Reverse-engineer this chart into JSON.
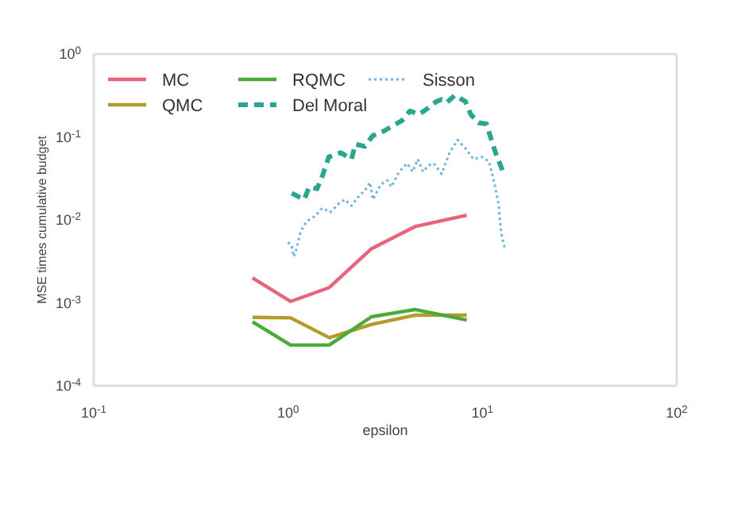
{
  "chart_data": {
    "type": "line",
    "xlabel": "epsilon",
    "ylabel": "MSE times cumulative budget",
    "log": "xy",
    "legend": "top left",
    "xlim": [
      0.1,
      100
    ],
    "xticks": [
      {
        "value": 0.1,
        "label": "10$^{-1}$"
      },
      {
        "value": 1,
        "label": "10$^{0}$"
      },
      {
        "value": 10,
        "label": "10$^{1}$"
      },
      {
        "value": 100,
        "label": "10$^{2}$"
      }
    ],
    "ylim": [
      0.0001,
      1
    ],
    "yticks": [
      {
        "value": 0.0001,
        "label": "10$^{-4}$"
      },
      {
        "value": 0.001,
        "label": "10$^{-3}$"
      },
      {
        "value": 0.01,
        "label": "10$^{-2}$"
      },
      {
        "value": 0.1,
        "label": "10$^{-1}$"
      },
      {
        "value": 1,
        "label": "10$^{0}$"
      }
    ],
    "series": [
      {
        "name": "MC",
        "color": "#e8647a",
        "line_style": "solid",
        "x": [
          0.656,
          1.03,
          1.63,
          2.69,
          4.5,
          8.3
        ],
        "values": [
          0.002,
          0.00104,
          0.00153,
          0.0045,
          0.0083,
          0.0114
        ]
      },
      {
        "name": "QMC",
        "color": "#b59a2e",
        "line_style": "solid",
        "x": [
          0.656,
          1.03,
          1.63,
          2.69,
          4.5,
          8.3
        ],
        "values": [
          0.00067,
          0.00066,
          0.00038,
          0.00055,
          0.00071,
          0.00071
        ]
      },
      {
        "name": "RQMC",
        "color": "#4aaa3a",
        "line_style": "solid",
        "x": [
          0.656,
          1.03,
          1.63,
          2.69,
          4.5,
          8.3
        ],
        "values": [
          0.00059,
          0.00031,
          0.00031,
          0.00068,
          0.00083,
          0.00062
        ]
      },
      {
        "name": "Del Moral",
        "color": "#2aa58f",
        "line_style": "dashed",
        "x": [
          1.045,
          1.21,
          1.285,
          1.41,
          1.5,
          1.62,
          1.87,
          2.12,
          2.22,
          2.48,
          2.73,
          3.09,
          3.51,
          3.85,
          4.24,
          4.71,
          5.27,
          5.79,
          6.17,
          6.56,
          7.21,
          8.18,
          8.71,
          9.57,
          10.5,
          11.3,
          11.9,
          12.9
        ],
        "values": [
          0.021,
          0.0176,
          0.025,
          0.0237,
          0.0337,
          0.0574,
          0.0646,
          0.054,
          0.0818,
          0.077,
          0.1036,
          0.1166,
          0.139,
          0.157,
          0.2056,
          0.187,
          0.223,
          0.267,
          0.283,
          0.26,
          0.318,
          0.267,
          0.187,
          0.148,
          0.144,
          0.0818,
          0.0574,
          0.0358
        ]
      },
      {
        "name": "Sisson",
        "color": "#6ab4e0",
        "line_style": "dotted",
        "x": [
          1.0,
          1.045,
          1.07,
          1.1,
          1.155,
          1.21,
          1.26,
          1.37,
          1.5,
          1.65,
          1.82,
          1.96,
          2.12,
          2.33,
          2.48,
          2.64,
          2.73,
          3.0,
          3.24,
          3.4,
          3.73,
          4.1,
          4.37,
          4.65,
          4.95,
          5.27,
          5.61,
          6.17,
          6.78,
          7.45,
          8.18,
          8.99,
          9.88,
          10.8,
          11.5,
          12.1,
          12.5,
          13.1
        ],
        "values": [
          0.0054,
          0.0048,
          0.0036,
          0.0043,
          0.0069,
          0.0087,
          0.0098,
          0.011,
          0.0139,
          0.0124,
          0.0157,
          0.0176,
          0.0148,
          0.0198,
          0.0223,
          0.0283,
          0.0176,
          0.0267,
          0.03,
          0.025,
          0.038,
          0.048,
          0.038,
          0.054,
          0.038,
          0.0453,
          0.048,
          0.0358,
          0.0646,
          0.092,
          0.0727,
          0.054,
          0.0574,
          0.051,
          0.0283,
          0.0157,
          0.0069,
          0.0043
        ]
      }
    ]
  }
}
